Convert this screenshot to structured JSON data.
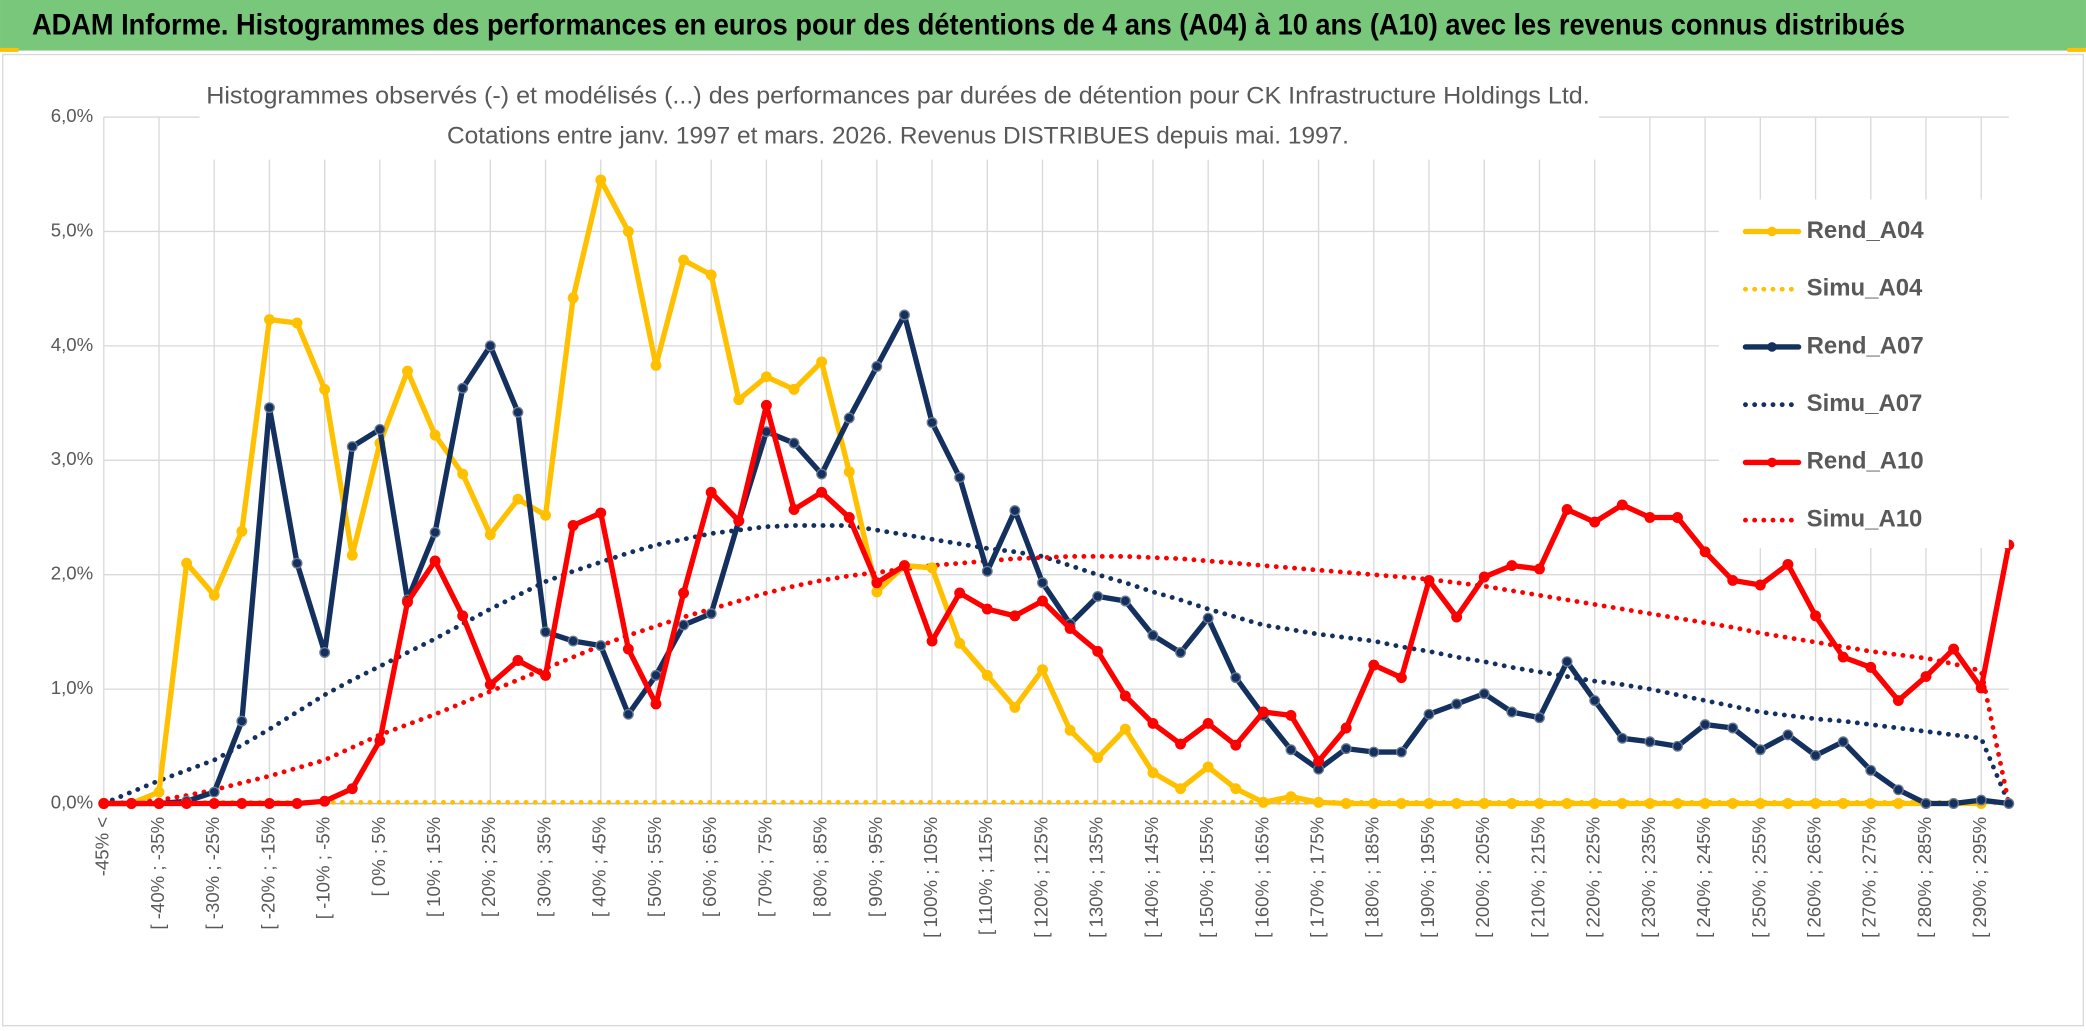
{
  "header": {
    "title": "ADAM Informe. Histogrammes des performances en euros pour des détentions de 4 ans (A04) à 10 ans (A10) avec les revenus connus distribués"
  },
  "chart_data": {
    "type": "line",
    "title": "Histogrammes observés (-) et modélisés (...) des performances par durées de détention pour CK Infrastructure Holdings Ltd.",
    "subtitle": "Cotations entre janv. 1997 et mars. 2026. Revenus DISTRIBUES depuis mai. 1997.",
    "categories": [
      "-45% <",
      null,
      "[ -40% ; -35%",
      null,
      "[ -30% ; -25%",
      null,
      "[ -20% ; -15%",
      null,
      "[ -10% ; -5%",
      null,
      "[ 0% ; 5%",
      null,
      "[ 10% ; 15%",
      null,
      "[ 20% ; 25%",
      null,
      "[ 30% ; 35%",
      null,
      "[ 40% ; 45%",
      null,
      "[ 50% ; 55%",
      null,
      "[ 60% ; 65%",
      null,
      "[ 70% ; 75%",
      null,
      "[ 80% ; 85%",
      null,
      "[ 90% ; 95%",
      null,
      "[ 100% ; 105%",
      null,
      "[ 110% ; 115%",
      null,
      "[ 120% ; 125%",
      null,
      "[ 130% ; 135%",
      null,
      "[ 140% ; 145%",
      null,
      "[ 150% ; 155%",
      null,
      "[ 160% ; 165%",
      null,
      "[ 170% ; 175%",
      null,
      "[ 180% ; 185%",
      null,
      "[ 190% ; 195%",
      null,
      "[ 200% ; 205%",
      null,
      "[ 210% ; 215%",
      null,
      "[ 220% ; 225%",
      null,
      "[ 230% ; 235%",
      null,
      "[ 240% ; 245%",
      null,
      "[ 250% ; 255%",
      null,
      "[ 260% ; 265%",
      null,
      "[ 270% ; 275%",
      null,
      "[ 280% ; 285%",
      null,
      "[ 290% ; 295%",
      null
    ],
    "series": [
      {
        "name": "Rend_A04",
        "color": "#ffc000",
        "line_style": "solid",
        "markers": true,
        "values": [
          0,
          0,
          0.1,
          2.1,
          1.82,
          2.38,
          4.23,
          4.2,
          3.62,
          2.17,
          3.15,
          3.78,
          3.22,
          2.88,
          2.35,
          2.66,
          2.52,
          4.42,
          5.45,
          5.0,
          3.83,
          4.75,
          4.62,
          3.53,
          3.73,
          3.62,
          3.86,
          2.9,
          1.85,
          2.08,
          2.06,
          1.4,
          1.12,
          0.84,
          1.17,
          0.64,
          0.4,
          0.65,
          0.27,
          0.13,
          0.32,
          0.13,
          0.01,
          0.06,
          0.01,
          0,
          0,
          0,
          0,
          0,
          0,
          0,
          0,
          0,
          0,
          0,
          0,
          0,
          0,
          0,
          0,
          0,
          0,
          0,
          0,
          0,
          0,
          0,
          0,
          null
        ]
      },
      {
        "name": "Simu_A04",
        "color": "#ffc000",
        "line_style": "dotted",
        "markers": false,
        "values": [
          0,
          0.01,
          0.01,
          0.01,
          0.01,
          0.01,
          0.01,
          0.01,
          0.01,
          0.01,
          0.01,
          0.01,
          0.01,
          0.01,
          0.01,
          0.01,
          0.01,
          0.01,
          0.01,
          0.01,
          0.01,
          0.01,
          0.01,
          0.01,
          0.01,
          0.01,
          0.01,
          0.01,
          0.01,
          0.01,
          0.01,
          0.01,
          0.01,
          0.01,
          0.01,
          0.01,
          0.01,
          0.01,
          0.01,
          0.01,
          0.01,
          0.01,
          0.01,
          0.01,
          0.01,
          0.01,
          0.01,
          0.01,
          0.01,
          0.01,
          0.01,
          0.01,
          0.01,
          0.01,
          0.01,
          0.01,
          0.01,
          0.01,
          0.01,
          0.01,
          0.01,
          0.01,
          0.01,
          0.01,
          0.01,
          0.01,
          0.01,
          0.01,
          0.01,
          0
        ]
      },
      {
        "name": "Rend_A07",
        "color": "#13305f",
        "line_style": "solid",
        "markers": true,
        "values": [
          0,
          0,
          0,
          0.02,
          0.1,
          0.72,
          3.46,
          2.1,
          1.32,
          3.12,
          3.27,
          1.78,
          2.37,
          3.63,
          4.0,
          3.42,
          1.5,
          1.42,
          1.38,
          0.78,
          1.12,
          1.56,
          1.66,
          2.47,
          3.25,
          3.15,
          2.88,
          3.37,
          3.82,
          4.27,
          3.33,
          2.85,
          2.03,
          2.56,
          1.93,
          1.57,
          1.81,
          1.77,
          1.47,
          1.32,
          1.62,
          1.1,
          0.77,
          0.47,
          0.3,
          0.48,
          0.45,
          0.45,
          0.78,
          0.87,
          0.96,
          0.8,
          0.75,
          1.24,
          0.9,
          0.57,
          0.54,
          0.5,
          0.69,
          0.66,
          0.47,
          0.6,
          0.42,
          0.54,
          0.29,
          0.12,
          0,
          0,
          0.03,
          0
        ]
      },
      {
        "name": "Simu_A07",
        "color": "#13305f",
        "line_style": "dotted",
        "markers": false,
        "values": [
          0,
          0.1,
          0.2,
          0.29,
          0.38,
          0.51,
          0.65,
          0.8,
          0.95,
          1.08,
          1.2,
          1.32,
          1.44,
          1.57,
          1.7,
          1.82,
          1.94,
          2.03,
          2.11,
          2.19,
          2.26,
          2.31,
          2.36,
          2.39,
          2.42,
          2.43,
          2.43,
          2.43,
          2.39,
          2.35,
          2.31,
          2.27,
          2.23,
          2.2,
          2.16,
          2.08,
          2.0,
          1.93,
          1.85,
          1.78,
          1.7,
          1.63,
          1.56,
          1.52,
          1.48,
          1.45,
          1.42,
          1.37,
          1.33,
          1.28,
          1.24,
          1.19,
          1.15,
          1.11,
          1.07,
          1.04,
          1.0,
          0.95,
          0.9,
          0.85,
          0.8,
          0.77,
          0.74,
          0.72,
          0.69,
          0.66,
          0.63,
          0.6,
          0.57,
          0
        ]
      },
      {
        "name": "Rend_A10",
        "color": "#ff0000",
        "line_style": "solid",
        "markers": true,
        "values": [
          0,
          0,
          0,
          0,
          0,
          0,
          0,
          0,
          0.02,
          0.13,
          0.55,
          1.76,
          2.12,
          1.64,
          1.04,
          1.25,
          1.12,
          2.43,
          2.54,
          1.35,
          0.87,
          1.84,
          2.72,
          2.47,
          3.48,
          2.57,
          2.72,
          2.5,
          1.93,
          2.08,
          1.42,
          1.84,
          1.7,
          1.64,
          1.77,
          1.53,
          1.33,
          0.94,
          0.7,
          0.52,
          0.7,
          0.51,
          0.8,
          0.77,
          0.37,
          0.66,
          1.21,
          1.1,
          1.95,
          1.63,
          1.98,
          2.08,
          2.05,
          2.57,
          2.46,
          2.61,
          2.5,
          2.5,
          2.2,
          1.95,
          1.91,
          2.09,
          1.64,
          1.28,
          1.19,
          0.9,
          1.11,
          1.35,
          1.01,
          2.26
        ]
      },
      {
        "name": "Simu_A10",
        "color": "#ff0000",
        "line_style": "dotted",
        "markers": false,
        "values": [
          0,
          0.01,
          0.03,
          0.07,
          0.12,
          0.18,
          0.24,
          0.31,
          0.38,
          0.49,
          0.6,
          0.69,
          0.78,
          0.88,
          0.98,
          1.08,
          1.18,
          1.28,
          1.38,
          1.47,
          1.55,
          1.63,
          1.7,
          1.77,
          1.84,
          1.9,
          1.95,
          1.99,
          2.02,
          2.05,
          2.08,
          2.1,
          2.12,
          2.14,
          2.15,
          2.16,
          2.16,
          2.16,
          2.15,
          2.14,
          2.12,
          2.1,
          2.08,
          2.06,
          2.04,
          2.02,
          2.0,
          1.98,
          1.96,
          1.93,
          1.9,
          1.86,
          1.82,
          1.78,
          1.74,
          1.7,
          1.66,
          1.62,
          1.58,
          1.54,
          1.49,
          1.45,
          1.41,
          1.37,
          1.33,
          1.3,
          1.27,
          1.22,
          1.16,
          0
        ]
      }
    ],
    "ylim": [
      0,
      6
    ],
    "yticks": [
      {
        "value": 0,
        "label": "0,0%"
      },
      {
        "value": 1,
        "label": "1,0%"
      },
      {
        "value": 2,
        "label": "2,0%"
      },
      {
        "value": 3,
        "label": "3,0%"
      },
      {
        "value": 4,
        "label": "4,0%"
      },
      {
        "value": 5,
        "label": "5,0%"
      },
      {
        "value": 6,
        "label": "6,0%"
      }
    ],
    "grid": true,
    "legend": "right"
  }
}
